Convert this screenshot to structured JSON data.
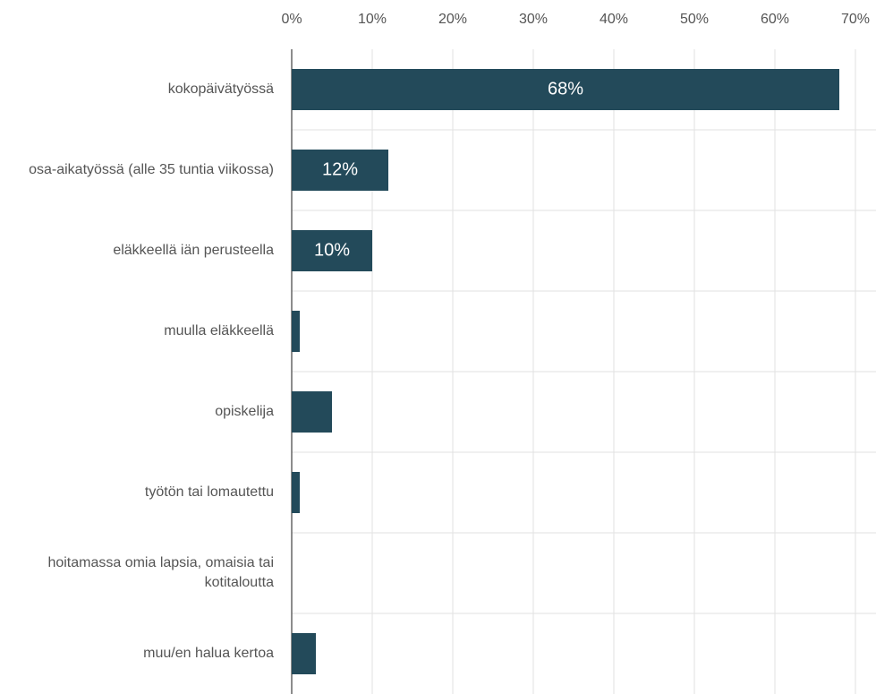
{
  "chart_data": {
    "type": "bar",
    "orientation": "horizontal",
    "categories": [
      "kokopäivätyössä",
      "osa-aikatyössä (alle 35 tuntia viikossa)",
      "eläkkeellä iän perusteella",
      "muulla eläkkeellä",
      "opiskelija",
      "työtön tai lomautettu",
      "hoitamassa omia lapsia, omaisia tai kotitaloutta",
      "muu/en halua kertoa"
    ],
    "values": [
      68,
      12,
      10,
      1,
      5,
      1,
      0,
      3
    ],
    "value_labels": [
      "68%",
      "12%",
      "10%",
      null,
      null,
      null,
      null,
      null
    ],
    "color": "#234a5a",
    "xlim": [
      0,
      70
    ],
    "xticks": [
      {
        "value": 0,
        "label": "0%"
      },
      {
        "value": 10,
        "label": "10%"
      },
      {
        "value": 20,
        "label": "20%"
      },
      {
        "value": 30,
        "label": "30%"
      },
      {
        "value": 40,
        "label": "40%"
      },
      {
        "value": 50,
        "label": "50%"
      },
      {
        "value": 60,
        "label": "60%"
      },
      {
        "value": 70,
        "label": "70%"
      }
    ],
    "grid": true
  }
}
